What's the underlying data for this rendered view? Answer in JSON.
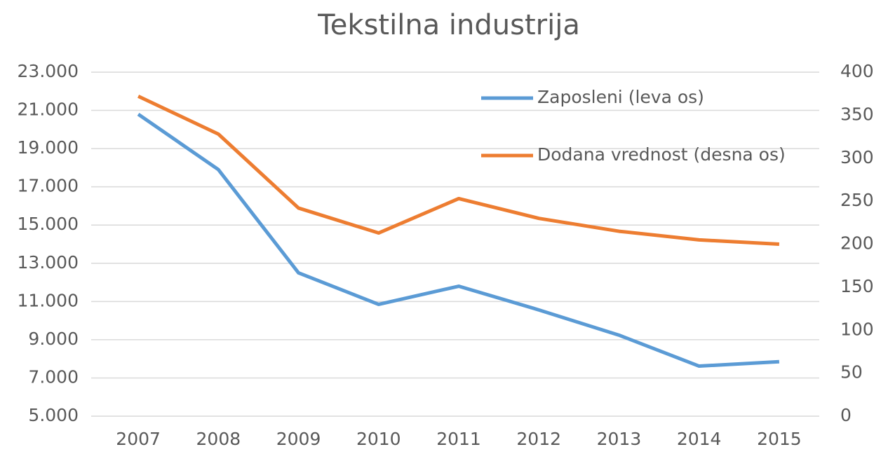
{
  "chart_data": {
    "type": "line",
    "title": "Tekstilna industrija",
    "categories": [
      "2007",
      "2008",
      "2009",
      "2010",
      "2011",
      "2012",
      "2013",
      "2014",
      "2015"
    ],
    "series": [
      {
        "name": "Zaposleni (leva os)",
        "color": "#5b9bd5",
        "axis": "y",
        "values": [
          20800,
          17900,
          12500,
          10850,
          11800,
          10560,
          9240,
          7620,
          7850
        ]
      },
      {
        "name": "Dodana vrednost (desna os)",
        "color": "#ed7d31",
        "axis": "y2",
        "values": [
          372,
          328,
          242,
          213,
          253,
          230,
          215,
          205,
          200
        ]
      }
    ],
    "ylim": [
      5000,
      23000
    ],
    "yticks": [
      {
        "value": 5000,
        "label": "5.000"
      },
      {
        "value": 7000,
        "label": "7.000"
      },
      {
        "value": 9000,
        "label": "9.000"
      },
      {
        "value": 11000,
        "label": "11.000"
      },
      {
        "value": 13000,
        "label": "13.000"
      },
      {
        "value": 15000,
        "label": "15.000"
      },
      {
        "value": 17000,
        "label": "17.000"
      },
      {
        "value": 19000,
        "label": "19.000"
      },
      {
        "value": 21000,
        "label": "21.000"
      },
      {
        "value": 23000,
        "label": "23.000"
      }
    ],
    "y2lim": [
      0,
      400
    ],
    "y2ticks": [
      0,
      50,
      100,
      150,
      200,
      250,
      300,
      350,
      400
    ],
    "grid": true,
    "legend": "upper right"
  }
}
